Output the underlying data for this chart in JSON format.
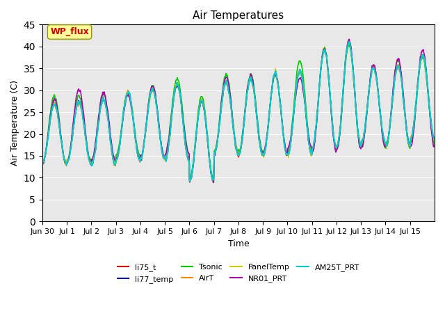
{
  "title": "Air Temperatures",
  "xlabel": "Time",
  "ylabel": "Air Temperature (C)",
  "ylim": [
    0,
    45
  ],
  "yticks": [
    0,
    5,
    10,
    15,
    20,
    25,
    30,
    35,
    40,
    45
  ],
  "date_labels": [
    "Jun 30",
    "Jul 1",
    "Jul 2",
    "Jul 3",
    "Jul 4",
    "Jul 5",
    "Jul 6",
    "Jul 7",
    "Jul 8",
    "Jul 9",
    "Jul 10",
    "Jul 11",
    "Jul 12",
    "Jul 13",
    "Jul 14",
    "Jul 15"
  ],
  "legend_entries": [
    {
      "label": "li75_t",
      "color": "#dd0000"
    },
    {
      "label": "li77_temp",
      "color": "#0000cc"
    },
    {
      "label": "Tsonic",
      "color": "#00cc00"
    },
    {
      "label": "AirT",
      "color": "#ff8800"
    },
    {
      "label": "PanelTemp",
      "color": "#cccc00"
    },
    {
      "label": "NR01_PRT",
      "color": "#aa00aa"
    },
    {
      "label": "AM25T_PRT",
      "color": "#00cccc"
    }
  ],
  "annotation_text": "WP_flux",
  "annotation_color": "#cc0000",
  "annotation_bg": "#ffff99",
  "background_inner": "#e8e8e8",
  "background_outer": "#ffffff",
  "n_days": 16,
  "pts_per_day": 48
}
